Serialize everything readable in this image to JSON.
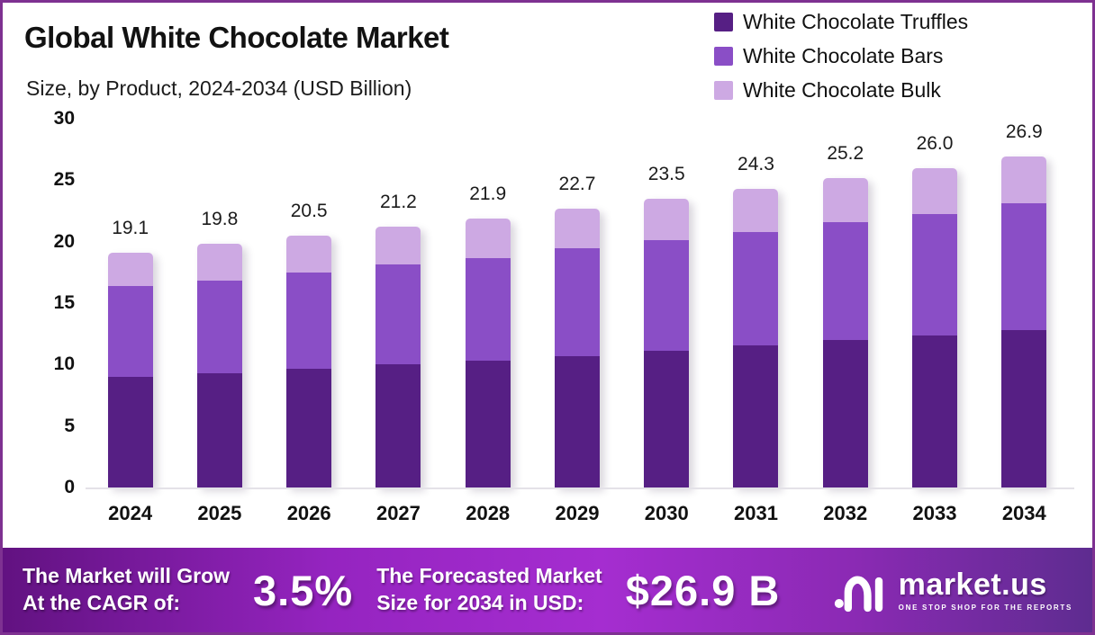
{
  "header": {
    "title": "Global White Chocolate Market",
    "subtitle": "Size, by Product, 2024-2034 (USD Billion)"
  },
  "legend": [
    {
      "label": "White Chocolate Truffles",
      "color": "#561f84"
    },
    {
      "label": "White Chocolate Bars",
      "color": "#8a4ec6"
    },
    {
      "label": "White Chocolate Bulk",
      "color": "#cda9e3"
    }
  ],
  "chart_data": {
    "type": "bar",
    "stacked": true,
    "title": "Global White Chocolate Market Size, by Product, 2024-2034 (USD Billion)",
    "categories": [
      "2024",
      "2025",
      "2026",
      "2027",
      "2028",
      "2029",
      "2030",
      "2031",
      "2032",
      "2033",
      "2034"
    ],
    "series": [
      {
        "name": "White Chocolate Truffles",
        "color": "#561f84",
        "values": [
          9.0,
          9.3,
          9.7,
          10.0,
          10.3,
          10.7,
          11.1,
          11.6,
          12.0,
          12.4,
          12.8
        ]
      },
      {
        "name": "White Chocolate Bars",
        "color": "#8a4ec6",
        "values": [
          7.4,
          7.5,
          7.8,
          8.1,
          8.4,
          8.8,
          9.0,
          9.2,
          9.6,
          9.9,
          10.3
        ]
      },
      {
        "name": "White Chocolate Bulk",
        "color": "#cda9e3",
        "values": [
          2.7,
          3.0,
          3.0,
          3.1,
          3.2,
          3.2,
          3.4,
          3.5,
          3.6,
          3.7,
          3.8
        ]
      }
    ],
    "totals": [
      "19.1",
      "19.8",
      "20.5",
      "21.2",
      "21.9",
      "22.7",
      "23.5",
      "24.3",
      "25.2",
      "26.0",
      "26.9"
    ],
    "xlabel": "",
    "ylabel": "",
    "ylim": [
      0,
      30
    ],
    "yticks": [
      0,
      5,
      10,
      15,
      20,
      25,
      30
    ],
    "grid": false,
    "legend_position": "top-right"
  },
  "banner": {
    "cagr_label_line1": "The Market will Grow",
    "cagr_label_line2": "At the CAGR of:",
    "cagr_value": "3.5%",
    "forecast_label_line1": "The Forecasted Market",
    "forecast_label_line2": "Size for 2034 in USD:",
    "forecast_value": "$26.9 B",
    "logo_name": "market.us",
    "logo_tagline": "ONE STOP SHOP FOR THE REPORTS"
  },
  "colors": {
    "frame_border": "#7e3191",
    "axis_line": "#e4e2e8",
    "text": "#111111",
    "banner_gradient": [
      "#621281",
      "#9524c0",
      "#a52dd0",
      "#8b2ab4",
      "#5e2c90"
    ]
  }
}
